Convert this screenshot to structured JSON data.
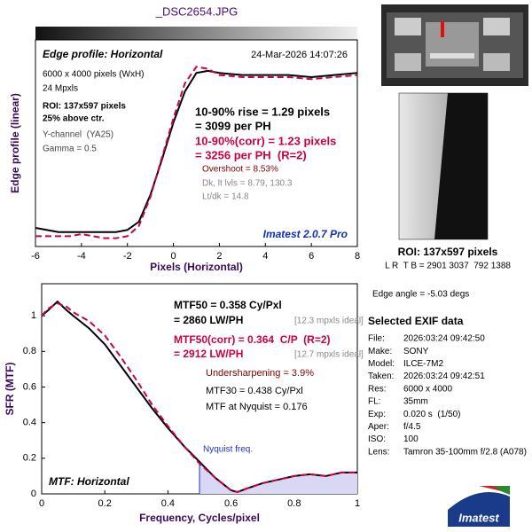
{
  "chart_data": [
    {
      "type": "line",
      "title": "_DSC2654.JPG",
      "xlabel": "Pixels (Horizontal)",
      "ylabel": "Edge profile (linear)",
      "x": [
        -6,
        -5.5,
        -5,
        -4.5,
        -4,
        -3.5,
        -3,
        -2.5,
        -2,
        -1.5,
        -1,
        -0.5,
        0,
        0.5,
        1,
        1.5,
        2,
        3,
        4,
        5,
        6,
        7,
        8
      ],
      "series": [
        {
          "color": "#000000",
          "dash": false,
          "values": [
            0.09,
            0.08,
            0.07,
            0.07,
            0.07,
            0.07,
            0.07,
            0.07,
            0.08,
            0.12,
            0.25,
            0.42,
            0.6,
            0.75,
            0.84,
            0.85,
            0.84,
            0.83,
            0.83,
            0.83,
            0.82,
            0.83,
            0.84
          ]
        },
        {
          "color": "#cc0044",
          "dash": true,
          "values": [
            0.05,
            0.05,
            0.05,
            0.05,
            0.06,
            0.05,
            0.04,
            0.04,
            0.05,
            0.1,
            0.24,
            0.43,
            0.62,
            0.79,
            0.87,
            0.86,
            0.83,
            0.82,
            0.82,
            0.82,
            0.81,
            0.82,
            0.83
          ]
        }
      ],
      "xlim": [
        -6,
        8
      ],
      "xticks": [
        -6,
        -4,
        -2,
        0,
        2,
        4,
        6,
        8
      ],
      "ylim": [
        0,
        1
      ],
      "annotations": [
        "Edge profile: Horizontal",
        "24-Mar-2026 14:07:26",
        "6000 x 4000 pixels (WxH)",
        "24 Mpxls",
        "ROI: 137x597 pixels",
        "25% above ctr.",
        "Y-channel  (YA25)",
        "Gamma = 0.5",
        "10-90% rise = 1.29 pixels",
        "= 3099 per PH",
        "10-90%(corr) = 1.23 pixels",
        "= 3256 per PH  (R=2)",
        "Overshoot = 8.53%",
        "Dk, lt lvls = 8.79, 130.3",
        "Lt/dk = 14.8",
        "Imatest 2.0.7 Pro"
      ]
    },
    {
      "type": "line",
      "xlabel": "Frequency, Cycles/pixel",
      "ylabel": "SFR (MTF)",
      "x": [
        0,
        0.02,
        0.05,
        0.08,
        0.1,
        0.15,
        0.2,
        0.25,
        0.3,
        0.35,
        0.4,
        0.45,
        0.5,
        0.55,
        0.6,
        0.62,
        0.65,
        0.7,
        0.75,
        0.8,
        0.85,
        0.9,
        0.95,
        1
      ],
      "series": [
        {
          "color": "#000000",
          "dash": false,
          "values": [
            1.0,
            1.03,
            1.08,
            1.03,
            1.0,
            0.93,
            0.84,
            0.72,
            0.6,
            0.48,
            0.37,
            0.27,
            0.18,
            0.09,
            0.02,
            0.01,
            0.03,
            0.06,
            0.08,
            0.1,
            0.11,
            0.1,
            0.12,
            0.12
          ]
        },
        {
          "color": "#cc0044",
          "dash": true,
          "values": [
            1.0,
            1.04,
            1.07,
            1.05,
            1.02,
            0.97,
            0.89,
            0.77,
            0.64,
            0.5,
            0.38,
            0.27,
            0.17,
            0.09,
            0.02,
            0.01,
            0.03,
            0.06,
            0.08,
            0.1,
            0.11,
            0.1,
            0.12,
            0.12
          ]
        }
      ],
      "xlim": [
        0,
        1
      ],
      "xticks": [
        0,
        0.2,
        0.4,
        0.6,
        0.8,
        1
      ],
      "ylim": [
        0,
        1.18
      ],
      "yticks": [
        0,
        0.2,
        0.4,
        0.6,
        0.8,
        1
      ],
      "nyquist": {
        "x": 0.5,
        "label": "Nyquist freq."
      },
      "annotations": [
        "MTF50 = 0.358 Cy/Pxl",
        "= 2860 LW/PH",
        "[12.3 mpxls ideal]",
        "MTF50(corr) = 0.364  C/P  (R=2)",
        "= 2912 LW/PH",
        "[12.7 mpxls ideal]",
        "Undersharpening = 3.9%",
        "MTF30 = 0.438 Cy/Pxl",
        "MTF at Nyquist = 0.176",
        "MTF: Horizontal"
      ]
    }
  ],
  "roi": {
    "label": "ROI: 137x597 pixels",
    "coords": "L R  T B = 2901 3037  792 1388"
  },
  "edge_angle": "Edge angle = -5.03 degs",
  "exif": {
    "title": "Selected EXIF data",
    "rows": [
      [
        "File:",
        "2026:03:24 09:42:50"
      ],
      [
        "Make:",
        "SONY"
      ],
      [
        "Model:",
        "ILCE-7M2"
      ],
      [
        "Taken:",
        "2026:03:24 09:42:51"
      ],
      [
        "Res:",
        "6000 x 4000"
      ],
      [
        "FL:",
        "35mm"
      ],
      [
        "Exp:",
        "0.020 s  (1/50)"
      ],
      [
        "Aper:",
        "f/4.5"
      ],
      [
        "ISO:",
        "100"
      ],
      [
        "Lens:",
        "Tamron 35-100mm f/2.8 (A078)"
      ]
    ]
  },
  "logo": "Imatest"
}
